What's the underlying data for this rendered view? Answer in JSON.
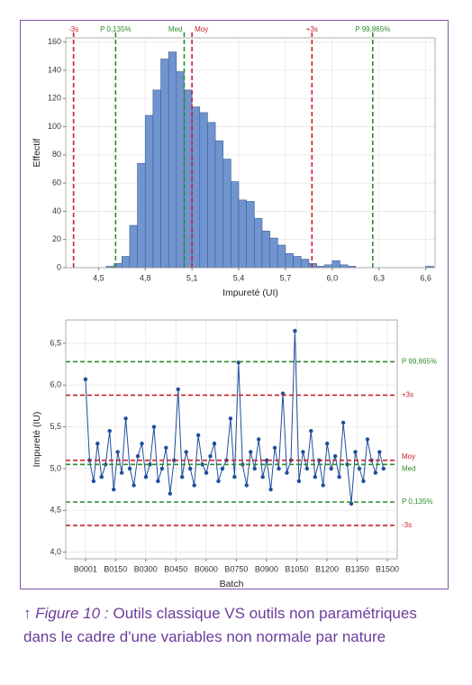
{
  "chart_data": [
    {
      "type": "histogram",
      "x_label": "Impureté (UI)",
      "y_label": "Effectif",
      "bins": [
        4.55,
        4.6,
        4.65,
        4.7,
        4.75,
        4.8,
        4.85,
        4.9,
        4.95,
        5.0,
        5.05,
        5.1,
        5.15,
        5.2,
        5.25,
        5.3,
        5.35,
        5.4,
        5.45,
        5.5,
        5.55,
        5.6,
        5.65,
        5.7,
        5.75,
        5.8,
        5.85,
        5.9,
        5.95,
        6.0,
        6.05,
        6.1,
        6.15,
        6.2,
        6.25,
        6.3,
        6.35,
        6.4,
        6.45,
        6.5,
        6.55,
        6.6,
        6.65
      ],
      "values": [
        1,
        3,
        8,
        30,
        74,
        108,
        126,
        148,
        153,
        139,
        126,
        114,
        110,
        103,
        90,
        77,
        61,
        48,
        47,
        35,
        26,
        21,
        16,
        10,
        8,
        6,
        3,
        1,
        2,
        5,
        2,
        1,
        0,
        0,
        0,
        0,
        0,
        0,
        0,
        0,
        0,
        1
      ],
      "color": "#6f94cf",
      "xlim": [
        4.29,
        6.66
      ],
      "xticks": [
        {
          "value": 4.5,
          "label": "4,5"
        },
        {
          "value": 4.8,
          "label": "4,8"
        },
        {
          "value": 5.1,
          "label": "5,1"
        },
        {
          "value": 5.4,
          "label": "5,4"
        },
        {
          "value": 5.7,
          "label": "5,7"
        },
        {
          "value": 6.0,
          "label": "6,0"
        },
        {
          "value": 6.3,
          "label": "6,3"
        },
        {
          "value": 6.6,
          "label": "6,6"
        }
      ],
      "ylim": [
        0,
        163
      ],
      "yticks": [
        0,
        20,
        40,
        60,
        80,
        100,
        120,
        140,
        160
      ],
      "grid": true,
      "reference_lines": [
        {
          "label": "-3s",
          "value": 4.34,
          "color": "#c8202a"
        },
        {
          "label": "P 0,135%",
          "value": 4.61,
          "color": "#2d8a2d"
        },
        {
          "label": "Med",
          "value": 5.05,
          "color": "#2d8a2d"
        },
        {
          "label": "Moy",
          "value": 5.1,
          "color": "#c8202a"
        },
        {
          "label": "+3s",
          "value": 5.87,
          "color": "#c8202a"
        },
        {
          "label": "P 99,865%",
          "value": 6.26,
          "color": "#2d8a2d"
        }
      ]
    },
    {
      "type": "line",
      "x_label": "Batch",
      "y_label": "Impureté (IU)",
      "x": [
        1,
        21,
        41,
        61,
        81,
        101,
        121,
        141,
        161,
        181,
        201,
        221,
        241,
        261,
        281,
        301,
        321,
        341,
        361,
        381,
        401,
        421,
        441,
        461,
        481,
        501,
        521,
        541,
        561,
        581,
        601,
        621,
        641,
        661,
        681,
        701,
        721,
        741,
        761,
        781,
        801,
        821,
        841,
        861,
        881,
        901,
        921,
        941,
        961,
        981,
        1001,
        1021,
        1041,
        1061,
        1081,
        1101,
        1121,
        1141,
        1161,
        1181,
        1201,
        1221,
        1241,
        1261,
        1281,
        1301,
        1321,
        1341,
        1361,
        1381,
        1401,
        1421,
        1441,
        1461,
        1481
      ],
      "values": [
        6.07,
        5.1,
        4.85,
        5.3,
        4.9,
        5.05,
        5.45,
        4.75,
        5.2,
        4.95,
        5.6,
        5.0,
        4.8,
        5.15,
        5.3,
        4.9,
        5.05,
        5.5,
        4.85,
        5.0,
        5.25,
        4.7,
        5.1,
        5.95,
        4.9,
        5.2,
        5.0,
        4.8,
        5.4,
        5.05,
        4.95,
        5.15,
        5.3,
        4.85,
        5.0,
        5.1,
        5.6,
        4.9,
        6.27,
        5.05,
        4.8,
        5.2,
        5.0,
        5.35,
        4.9,
        5.1,
        4.75,
        5.25,
        5.0,
        5.9,
        4.95,
        5.1,
        6.65,
        4.85,
        5.2,
        5.0,
        5.45,
        4.9,
        5.1,
        4.8,
        5.3,
        5.0,
        5.15,
        4.9,
        5.55,
        5.05,
        4.58,
        5.2,
        5.0,
        4.85,
        5.35,
        5.1,
        4.95,
        5.2,
        5.0
      ],
      "color": "#1f4e9c",
      "xlim": [
        -97,
        1549
      ],
      "xticks": [
        {
          "value": 1,
          "label": "B0001"
        },
        {
          "value": 150,
          "label": "B0150"
        },
        {
          "value": 300,
          "label": "B0300"
        },
        {
          "value": 450,
          "label": "B0450"
        },
        {
          "value": 600,
          "label": "B0600"
        },
        {
          "value": 750,
          "label": "B0750"
        },
        {
          "value": 900,
          "label": "B0900"
        },
        {
          "value": 1050,
          "label": "B1050"
        },
        {
          "value": 1200,
          "label": "B1200"
        },
        {
          "value": 1350,
          "label": "B1350"
        },
        {
          "value": 1500,
          "label": "B1500"
        }
      ],
      "ylim": [
        3.92,
        6.78
      ],
      "yticks": [
        {
          "value": 4.0,
          "label": "4,0"
        },
        {
          "value": 4.5,
          "label": "4,5"
        },
        {
          "value": 5.0,
          "label": "5,0"
        },
        {
          "value": 5.5,
          "label": "5,5"
        },
        {
          "value": 6.0,
          "label": "6,0"
        },
        {
          "value": 6.5,
          "label": "6,5"
        }
      ],
      "grid": true,
      "reference_lines": [
        {
          "label": "P 99,865%",
          "value": 6.28,
          "color": "#2d8a2d"
        },
        {
          "label": "+3s",
          "value": 5.88,
          "color": "#c8202a"
        },
        {
          "label": "Moy",
          "value": 5.1,
          "color": "#c8202a"
        },
        {
          "label": "Med",
          "value": 5.05,
          "color": "#2d8a2d"
        },
        {
          "label": "P 0,135%",
          "value": 4.6,
          "color": "#2d8a2d"
        },
        {
          "label": "-3s",
          "value": 4.32,
          "color": "#c8202a"
        }
      ]
    }
  ],
  "caption": {
    "label": "Figure 10 :",
    "text": "Outils classique VS outils non paramétriques dans le cadre d'une variables non normale par nature"
  }
}
